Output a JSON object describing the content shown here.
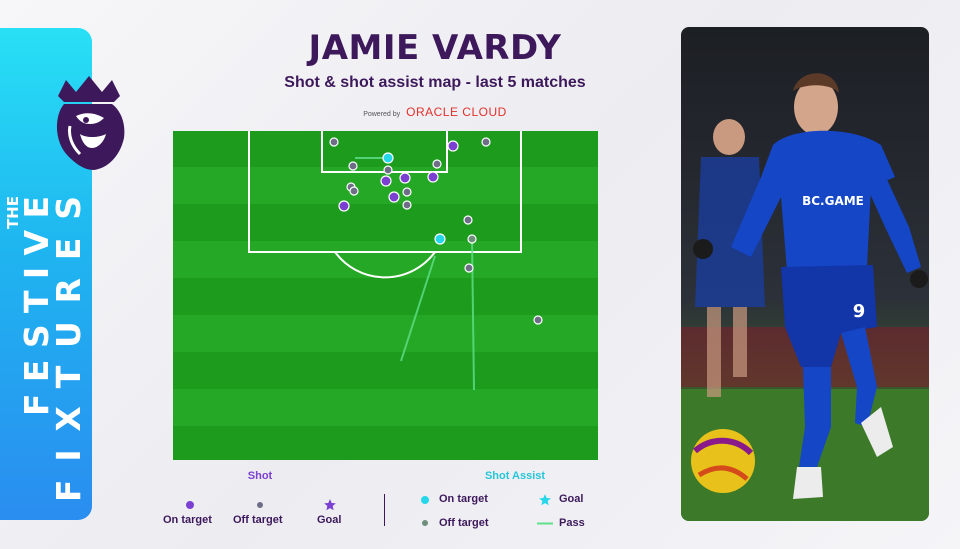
{
  "header": {
    "title": "JAMIE VARDY",
    "subtitle": "Shot & shot assist map - last 5 matches",
    "powered_by": "Powered by",
    "sponsor": "ORACLE CLOUD"
  },
  "brand": {
    "line1": "THE",
    "line2": "FESTIVE",
    "line3": "FIXTURES",
    "logo_icon": "lion-crest-icon"
  },
  "colors": {
    "pitch_dark": "#1d9b1d",
    "pitch_light": "#23a723",
    "shot_on_target": "#7b3fd1",
    "shot_off_target": "#6d6d88",
    "assist_on_target": "#26d6ea",
    "assist_pass": "#5fe08a",
    "brand_cyan": "#28e0f5",
    "text": "#3d195b"
  },
  "legend": {
    "shot_heading": "Shot",
    "assist_heading": "Shot Assist",
    "shot_on_target": "On target",
    "shot_off_target": "Off target",
    "shot_goal": "Goal",
    "assist_on_target": "On target",
    "assist_off_target": "Off target",
    "assist_goal": "Goal",
    "assist_pass": "Pass"
  },
  "photo": {
    "shirt_sponsor": "BC.GAME",
    "shirt_number": "9"
  }
}
